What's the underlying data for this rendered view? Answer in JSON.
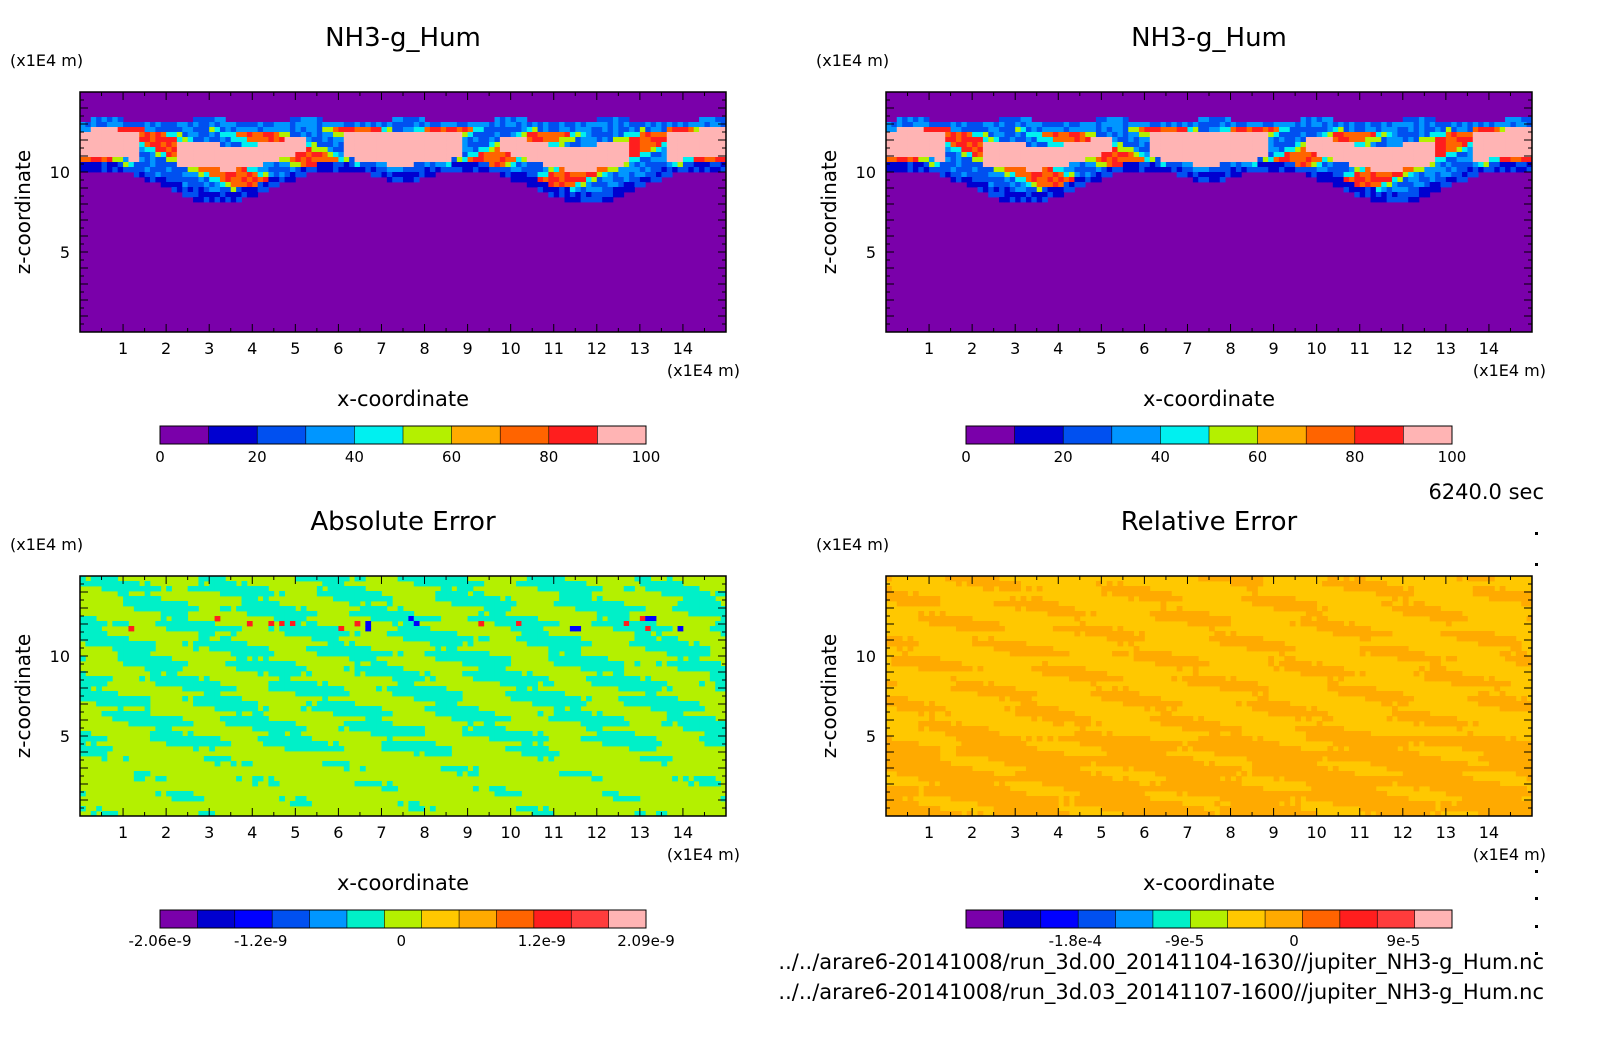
{
  "chart_data": [
    {
      "type": "heatmap",
      "title": "NH3-g_Hum",
      "xlabel": "x-coordinate",
      "ylabel": "z-coordinate",
      "x_unit": "(x1E4 m)",
      "y_unit": "(x1E4 m)",
      "xlim": [
        0,
        15
      ],
      "ylim": [
        0,
        15
      ],
      "x_ticks": [
        "1",
        "2",
        "3",
        "4",
        "5",
        "6",
        "7",
        "8",
        "9",
        "10",
        "11",
        "12",
        "13",
        "14"
      ],
      "y_ticks": [
        "5",
        "10"
      ],
      "colorbar": {
        "min": 0,
        "max": 100,
        "labels": [
          {
            "v": 0,
            "t": "0"
          },
          {
            "v": 20,
            "t": "20"
          },
          {
            "v": 40,
            "t": "40"
          },
          {
            "v": 60,
            "t": "60"
          },
          {
            "v": 80,
            "t": "80"
          },
          {
            "v": 100,
            "t": "100"
          }
        ],
        "colors": [
          "#7a00aa",
          "#0000d0",
          "#0050f0",
          "#0096ff",
          "#00f0f0",
          "#b4f000",
          "#ffaa00",
          "#ff6400",
          "#ff1e1e",
          "#ffb4b4"
        ]
      },
      "background_color": "#7a00aa"
    },
    {
      "type": "heatmap",
      "title": "NH3-g_Hum",
      "xlabel": "x-coordinate",
      "ylabel": "z-coordinate",
      "x_unit": "(x1E4 m)",
      "y_unit": "(x1E4 m)",
      "xlim": [
        0,
        15
      ],
      "ylim": [
        0,
        15
      ],
      "x_ticks": [
        "1",
        "2",
        "3",
        "4",
        "5",
        "6",
        "7",
        "8",
        "9",
        "10",
        "11",
        "12",
        "13",
        "14"
      ],
      "y_ticks": [
        "5",
        "10"
      ],
      "colorbar": {
        "min": 0,
        "max": 100,
        "labels": [
          {
            "v": 0,
            "t": "0"
          },
          {
            "v": 20,
            "t": "20"
          },
          {
            "v": 40,
            "t": "40"
          },
          {
            "v": 60,
            "t": "60"
          },
          {
            "v": 80,
            "t": "80"
          },
          {
            "v": 100,
            "t": "100"
          }
        ],
        "colors": [
          "#7a00aa",
          "#0000d0",
          "#0050f0",
          "#0096ff",
          "#00f0f0",
          "#b4f000",
          "#ffaa00",
          "#ff6400",
          "#ff1e1e",
          "#ffb4b4"
        ]
      },
      "background_color": "#7a00aa"
    },
    {
      "type": "heatmap",
      "title": "Absolute Error",
      "xlabel": "x-coordinate",
      "ylabel": "z-coordinate",
      "x_unit": "(x1E4 m)",
      "y_unit": "(x1E4 m)",
      "xlim": [
        0,
        15
      ],
      "ylim": [
        0,
        15
      ],
      "x_ticks": [
        "1",
        "2",
        "3",
        "4",
        "5",
        "6",
        "7",
        "8",
        "9",
        "10",
        "11",
        "12",
        "13",
        "14"
      ],
      "y_ticks": [
        "5",
        "10"
      ],
      "colorbar": {
        "min": -2.06e-09,
        "max": 2.09e-09,
        "labels": [
          {
            "v": -2.06e-09,
            "t": "-2.06e-9"
          },
          {
            "v": -1.2e-09,
            "t": "-1.2e-9"
          },
          {
            "v": 0,
            "t": "0"
          },
          {
            "v": 1.2e-09,
            "t": "1.2e-9"
          },
          {
            "v": 2.09e-09,
            "t": "2.09e-9"
          }
        ],
        "colors": [
          "#7a00aa",
          "#0000d0",
          "#0000ff",
          "#0050f0",
          "#0096ff",
          "#00f0c8",
          "#b4f000",
          "#ffc800",
          "#ffaa00",
          "#ff6400",
          "#ff1e1e",
          "#ff3c3c",
          "#ffb4b4"
        ]
      },
      "background_color": "#b4f000"
    },
    {
      "type": "heatmap",
      "title": "Relative Error",
      "xlabel": "x-coordinate",
      "ylabel": "z-coordinate",
      "x_unit": "(x1E4 m)",
      "y_unit": "(x1E4 m)",
      "xlim": [
        0,
        15
      ],
      "ylim": [
        0,
        15
      ],
      "x_ticks": [
        "1",
        "2",
        "3",
        "4",
        "5",
        "6",
        "7",
        "8",
        "9",
        "10",
        "11",
        "12",
        "13",
        "14"
      ],
      "y_ticks": [
        "5",
        "10"
      ],
      "colorbar": {
        "min": -0.00027,
        "max": 0.00013,
        "labels": [
          {
            "v": -0.00018,
            "t": "-1.8e-4"
          },
          {
            "v": -9e-05,
            "t": "-9e-5"
          },
          {
            "v": 0,
            "t": "0"
          },
          {
            "v": 9e-05,
            "t": "9e-5"
          }
        ],
        "colors": [
          "#7a00aa",
          "#0000d0",
          "#0000ff",
          "#0050f0",
          "#0096ff",
          "#00f0c8",
          "#b4f000",
          "#ffc800",
          "#ffaa00",
          "#ff6400",
          "#ff1e1e",
          "#ff3c3c",
          "#ffb4b4"
        ]
      },
      "background_color": "#ffc800"
    }
  ],
  "time_label": "6240.0 sec",
  "files": [
    "../../arare6-20141008/run_3d.00_20141104-1630//jupiter_NH3-g_Hum.nc",
    "../../arare6-20141008/run_3d.03_20141107-1600//jupiter_NH3-g_Hum.nc"
  ]
}
